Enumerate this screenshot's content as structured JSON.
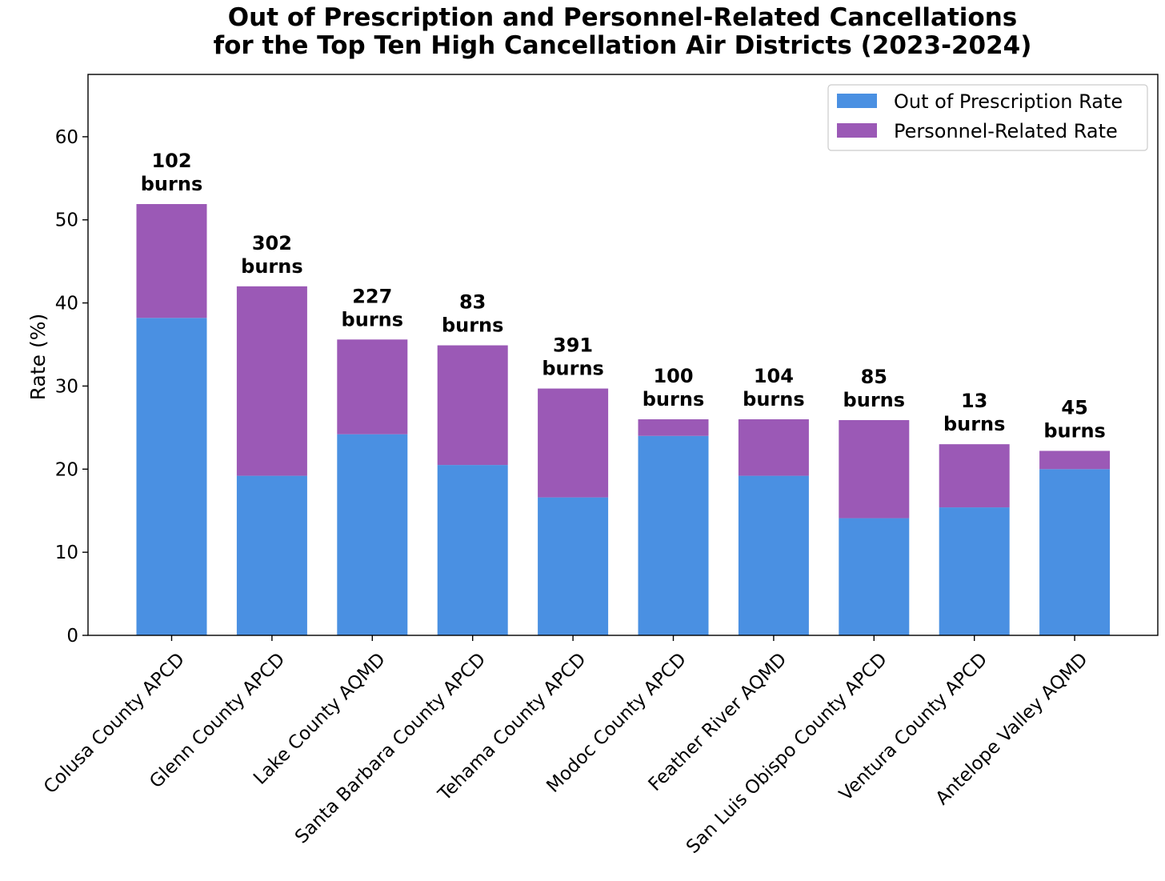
{
  "chart_data": {
    "type": "bar",
    "stacked": true,
    "title_lines": [
      "Out of Prescription and Personnel-Related Cancellations",
      "for the Top Ten High Cancellation Air Districts (2023-2024)"
    ],
    "xlabel": "",
    "ylabel": "Rate (%)",
    "ylim": [
      0,
      67.5
    ],
    "yticks": [
      0,
      10,
      20,
      30,
      40,
      50,
      60
    ],
    "grid": false,
    "legend_position": "top-right",
    "categories": [
      "Colusa County APCD",
      "Glenn County APCD",
      "Lake County AQMD",
      "Santa Barbara County APCD",
      "Tehama County APCD",
      "Modoc County APCD",
      "Feather River AQMD",
      "San Luis Obispo County APCD",
      "Ventura County APCD",
      "Antelope Valley AQMD"
    ],
    "series": [
      {
        "name": "Out of Prescription Rate",
        "color": "#4a90e2",
        "values": [
          38.2,
          19.2,
          24.2,
          20.5,
          16.6,
          24.0,
          19.2,
          14.1,
          15.4,
          20.0
        ]
      },
      {
        "name": "Personnel-Related Rate",
        "color": "#9b59b6",
        "values": [
          13.7,
          22.8,
          11.4,
          14.4,
          13.1,
          2.0,
          6.8,
          11.8,
          7.6,
          2.2
        ]
      }
    ],
    "bar_labels": [
      [
        "102",
        "burns"
      ],
      [
        "302",
        "burns"
      ],
      [
        "227",
        "burns"
      ],
      [
        "83",
        "burns"
      ],
      [
        "391",
        "burns"
      ],
      [
        "100",
        "burns"
      ],
      [
        "104",
        "burns"
      ],
      [
        "85",
        "burns"
      ],
      [
        "13",
        "burns"
      ],
      [
        "45",
        "burns"
      ]
    ]
  }
}
